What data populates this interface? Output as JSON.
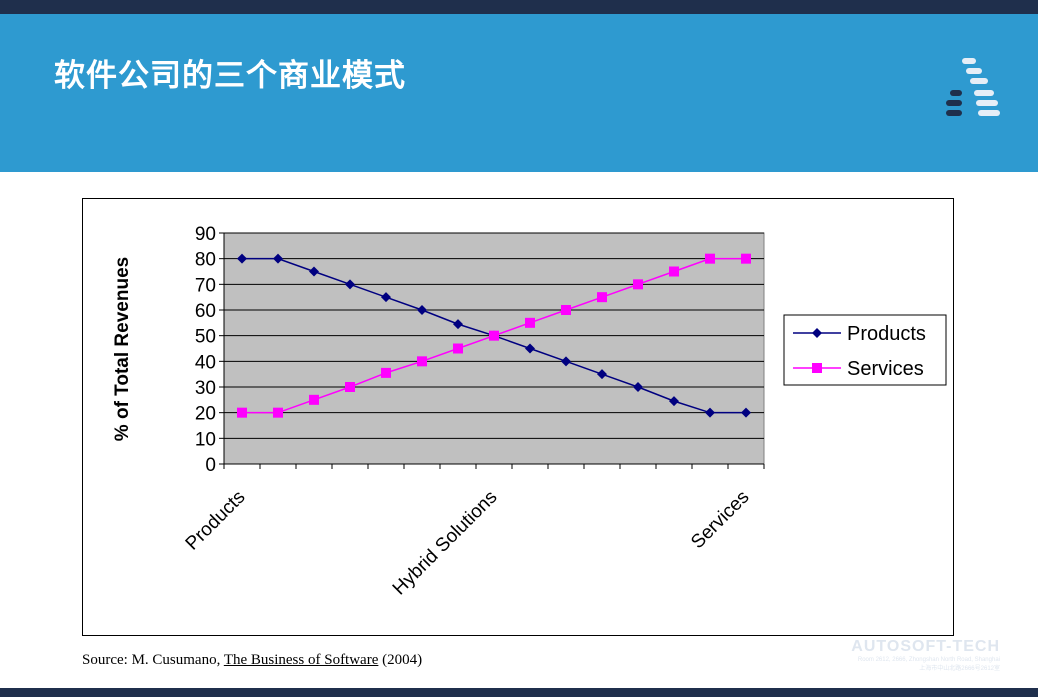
{
  "slide": {
    "title": "软件公司的三个商业模式",
    "source": {
      "prefix": "Source: M. Cusumano, ",
      "book": "The Business of Software",
      "suffix": " (2004)"
    }
  },
  "theme": {
    "header_band": "#2e9ad0",
    "dark_strip": "#1f2f4c",
    "plot_bg": "#c0c0c0",
    "products_color": "#000080",
    "services_color": "#ff00ff"
  },
  "watermark": {
    "brand": "AUTOSOFT-TECH",
    "line1": "Room 2612, 2666, Zhongshan North Road, Shanghai",
    "line2": "上海市中山北路2666号2612室"
  },
  "logo": {
    "icon": "autosoft-logo-icon"
  },
  "chart_data": {
    "type": "line",
    "ylabel": "% of Total Revenues",
    "ylim": [
      0,
      90
    ],
    "yticks": [
      0,
      10,
      20,
      30,
      40,
      50,
      60,
      70,
      80,
      90
    ],
    "grid": true,
    "legend_position": "right",
    "x_tick_labels": [
      {
        "index": 0,
        "text": "Products"
      },
      {
        "index": 7,
        "text": "Hybrid Solutions"
      },
      {
        "index": 14,
        "text": "Services"
      }
    ],
    "x_count": 15,
    "series": [
      {
        "name": "Products",
        "marker": "diamond",
        "color": "#000080",
        "values": [
          80,
          80,
          75,
          70,
          65,
          60,
          54.5,
          50,
          45,
          40,
          35,
          30,
          24.5,
          20,
          20
        ]
      },
      {
        "name": "Services",
        "marker": "square",
        "color": "#ff00ff",
        "values": [
          20,
          20,
          25,
          30,
          35.5,
          40,
          45,
          50,
          55,
          60,
          65,
          70,
          75,
          80,
          80
        ]
      }
    ]
  }
}
